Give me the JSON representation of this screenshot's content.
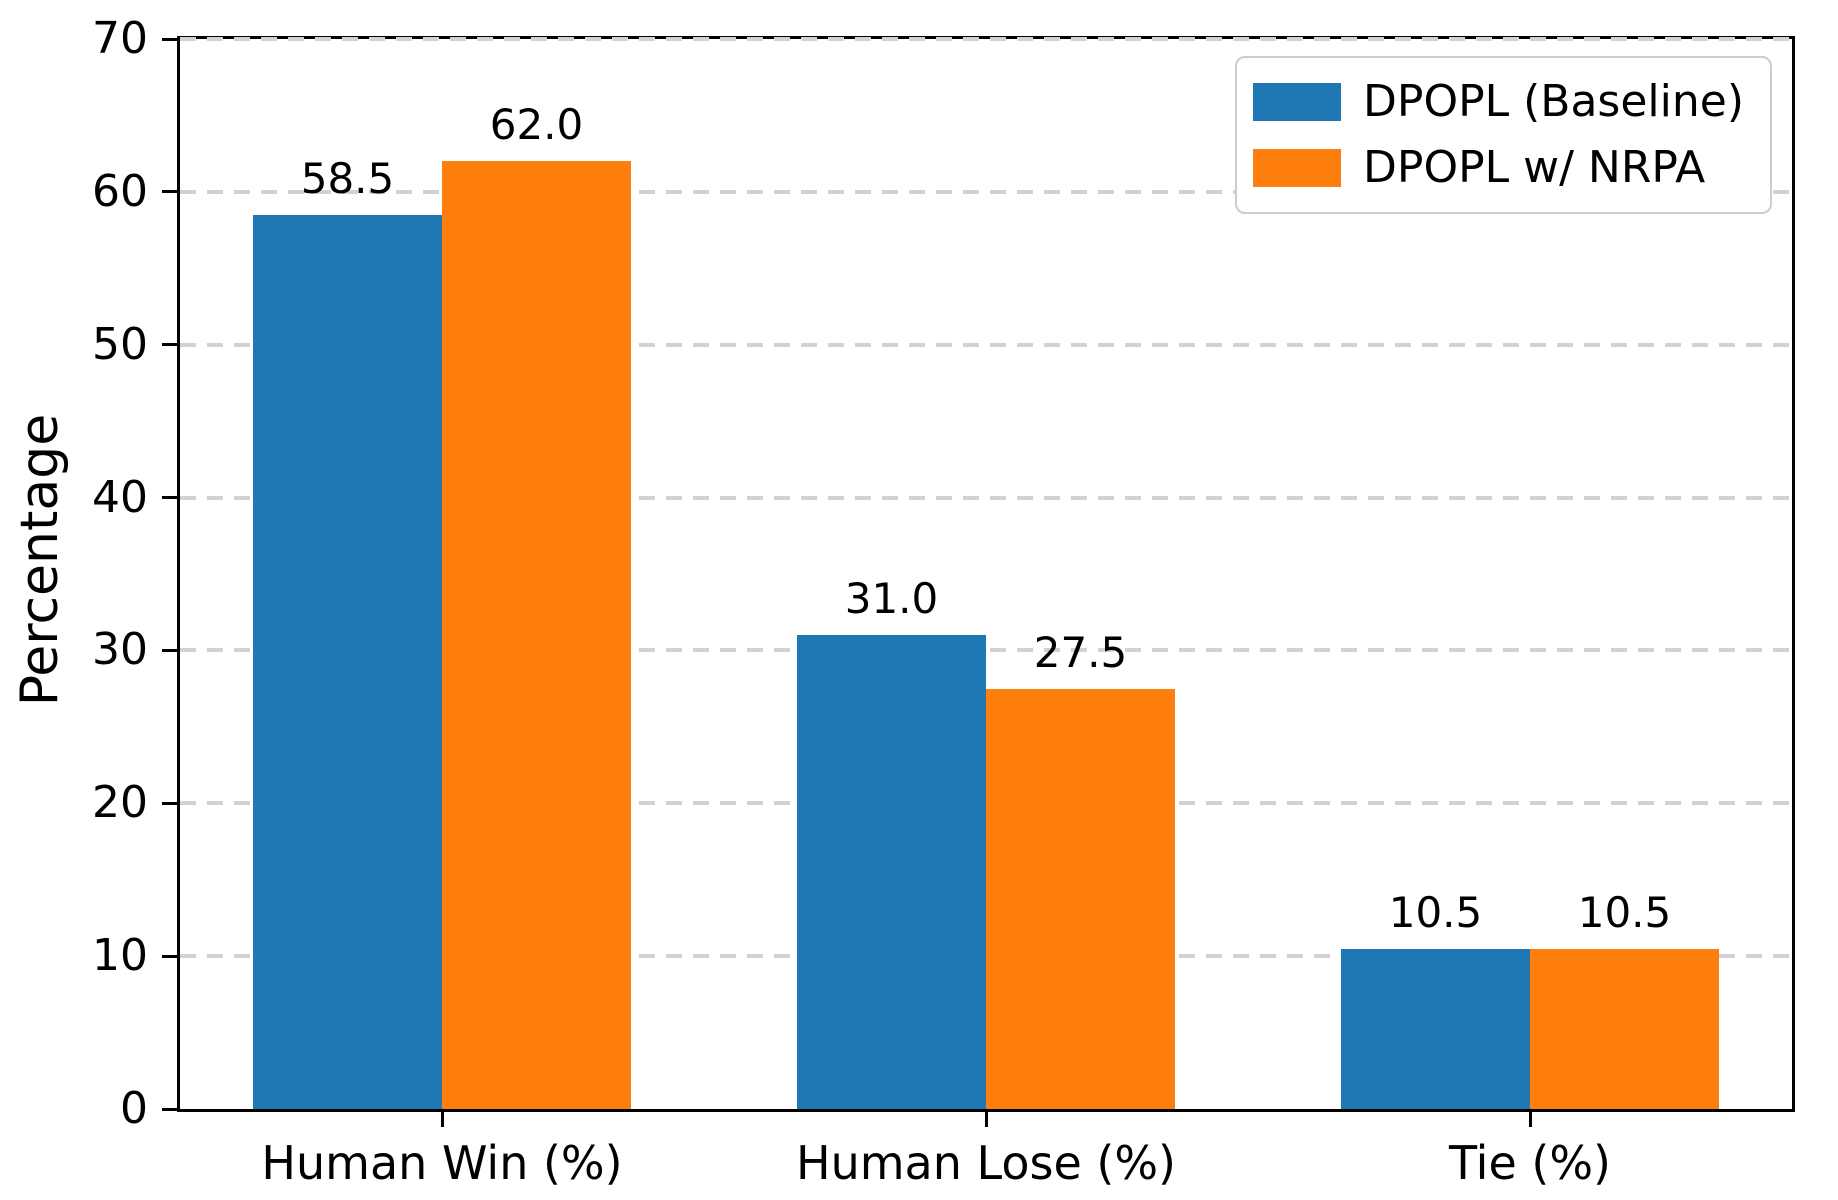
{
  "chart_data": {
    "type": "bar",
    "categories": [
      "Human Win (%)",
      "Human Lose (%)",
      "Tie (%)"
    ],
    "series": [
      {
        "name": "DPOPL (Baseline)",
        "color": "#1f77b4",
        "values": [
          58.5,
          31.0,
          10.5
        ],
        "value_labels": [
          "58.5",
          "31.0",
          "10.5"
        ]
      },
      {
        "name": "DPOPL w/ NRPA",
        "color": "#ff7f0e",
        "values": [
          62.0,
          27.5,
          10.5
        ],
        "value_labels": [
          "62.0",
          "27.5",
          "10.5"
        ]
      }
    ],
    "xlabel": "",
    "ylabel": "Percentage",
    "ylim": [
      0,
      70
    ],
    "yticks": [
      0,
      10,
      20,
      30,
      40,
      50,
      60,
      70
    ],
    "grid": "horizontal-dashed",
    "grid_color": "#d2d2d2",
    "legend_position": "upper-right",
    "bar_labels_shown": true,
    "spine_color": "#000000"
  }
}
